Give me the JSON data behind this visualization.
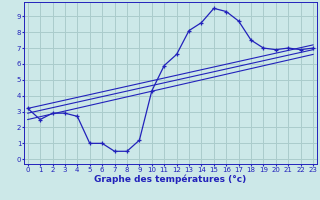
{
  "xlabel": "Graphe des températures (°c)",
  "bg_color": "#cce8e8",
  "grid_color": "#aacccc",
  "line_color": "#2222bb",
  "hours": [
    0,
    1,
    2,
    3,
    4,
    5,
    6,
    7,
    8,
    9,
    10,
    11,
    12,
    13,
    14,
    15,
    16,
    17,
    18,
    19,
    20,
    21,
    22,
    23
  ],
  "temps": [
    3.2,
    2.5,
    2.9,
    2.9,
    2.7,
    1.0,
    1.0,
    0.5,
    0.5,
    1.2,
    4.3,
    5.9,
    6.6,
    8.1,
    8.6,
    9.5,
    9.3,
    8.7,
    7.5,
    7.0,
    6.9,
    7.0,
    6.9,
    7.0
  ],
  "trend1_x": [
    0,
    23
  ],
  "trend1_y": [
    3.2,
    7.2
  ],
  "trend2_x": [
    0,
    23
  ],
  "trend2_y": [
    2.9,
    6.9
  ],
  "trend3_x": [
    0,
    23
  ],
  "trend3_y": [
    2.5,
    6.6
  ],
  "xlim": [
    -0.3,
    23.3
  ],
  "ylim": [
    -0.3,
    9.9
  ],
  "yticks": [
    0,
    1,
    2,
    3,
    4,
    5,
    6,
    7,
    8,
    9
  ],
  "xticks": [
    0,
    1,
    2,
    3,
    4,
    5,
    6,
    7,
    8,
    9,
    10,
    11,
    12,
    13,
    14,
    15,
    16,
    17,
    18,
    19,
    20,
    21,
    22,
    23
  ],
  "tick_fontsize": 5.0,
  "xlabel_fontsize": 6.5
}
